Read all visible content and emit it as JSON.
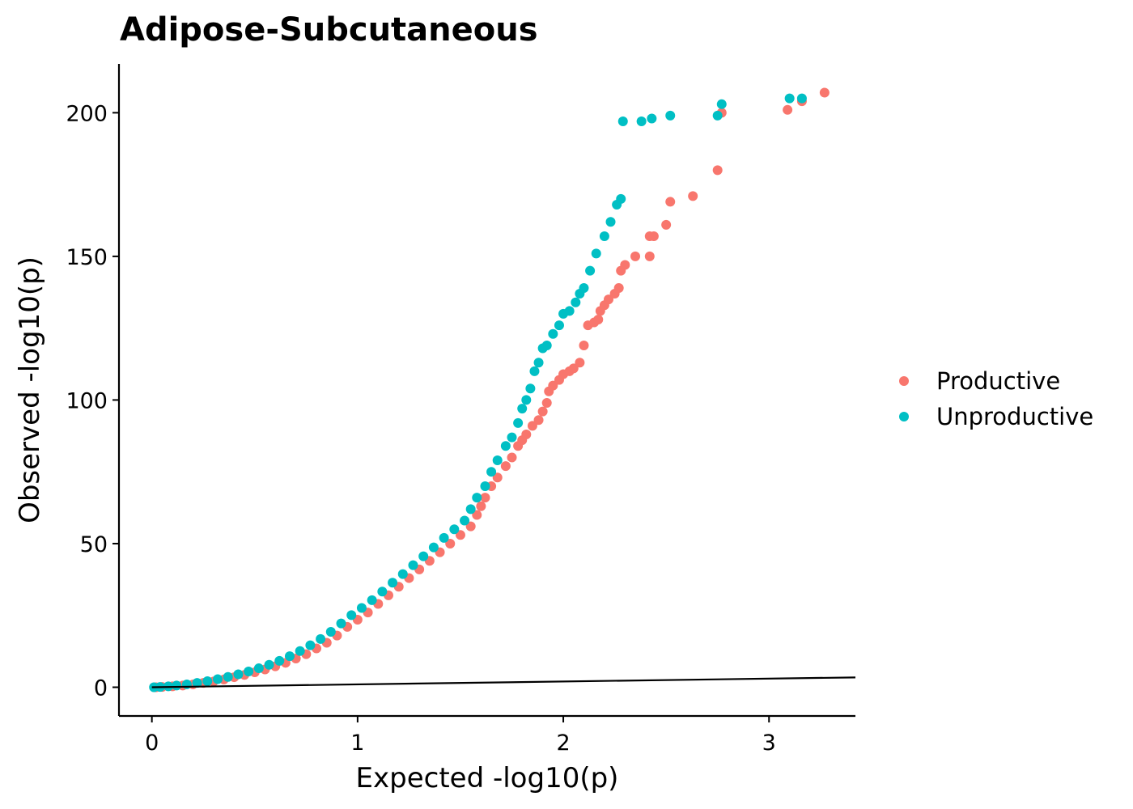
{
  "chart_data": {
    "type": "scatter",
    "title": "Adipose-Subcutaneous",
    "xlabel": "Expected -log10(p)",
    "ylabel": "Observed -log10(p)",
    "xlim": [
      -0.16,
      3.42
    ],
    "ylim": [
      -10,
      217
    ],
    "x_ticks": [
      0,
      1,
      2,
      3
    ],
    "y_ticks": [
      0,
      50,
      100,
      150,
      200
    ],
    "x_tick_labels": [
      "0",
      "1",
      "2",
      "3"
    ],
    "y_tick_labels": [
      "0",
      "50",
      "100",
      "150",
      "200"
    ],
    "grid": false,
    "legend_position": "right",
    "reference_line": {
      "slope": 1,
      "intercept": 0
    },
    "series": [
      {
        "name": "Productive",
        "color": "#F8766D",
        "points": [
          [
            0.02,
            0
          ],
          [
            0.05,
            0.1
          ],
          [
            0.1,
            0.3
          ],
          [
            0.15,
            0.6
          ],
          [
            0.2,
            1.0
          ],
          [
            0.25,
            1.5
          ],
          [
            0.3,
            2.0
          ],
          [
            0.35,
            2.7
          ],
          [
            0.4,
            3.5
          ],
          [
            0.45,
            4.3
          ],
          [
            0.5,
            5.2
          ],
          [
            0.55,
            6.2
          ],
          [
            0.6,
            7.3
          ],
          [
            0.65,
            8.5
          ],
          [
            0.7,
            10
          ],
          [
            0.75,
            11.5
          ],
          [
            0.8,
            13.5
          ],
          [
            0.85,
            15.5
          ],
          [
            0.9,
            18
          ],
          [
            0.95,
            21
          ],
          [
            1.0,
            23.5
          ],
          [
            1.05,
            26
          ],
          [
            1.1,
            29
          ],
          [
            1.15,
            32
          ],
          [
            1.2,
            35
          ],
          [
            1.25,
            38
          ],
          [
            1.3,
            41
          ],
          [
            1.35,
            44
          ],
          [
            1.4,
            47
          ],
          [
            1.45,
            50
          ],
          [
            1.5,
            53
          ],
          [
            1.55,
            56
          ],
          [
            1.58,
            60
          ],
          [
            1.6,
            63
          ],
          [
            1.62,
            66
          ],
          [
            1.65,
            70
          ],
          [
            1.68,
            73
          ],
          [
            1.72,
            77
          ],
          [
            1.75,
            80
          ],
          [
            1.78,
            84
          ],
          [
            1.8,
            86
          ],
          [
            1.82,
            88
          ],
          [
            1.85,
            91
          ],
          [
            1.88,
            93
          ],
          [
            1.9,
            96
          ],
          [
            1.92,
            99
          ],
          [
            1.93,
            103
          ],
          [
            1.95,
            105
          ],
          [
            1.98,
            107
          ],
          [
            2.0,
            109
          ],
          [
            2.03,
            110
          ],
          [
            2.05,
            111
          ],
          [
            2.08,
            113
          ],
          [
            2.1,
            119
          ],
          [
            2.12,
            126
          ],
          [
            2.15,
            127
          ],
          [
            2.17,
            128
          ],
          [
            2.18,
            131
          ],
          [
            2.2,
            133
          ],
          [
            2.22,
            135
          ],
          [
            2.25,
            137
          ],
          [
            2.27,
            139
          ],
          [
            2.28,
            145
          ],
          [
            2.3,
            147
          ],
          [
            2.35,
            150
          ],
          [
            2.42,
            150
          ],
          [
            2.42,
            157
          ],
          [
            2.44,
            157
          ],
          [
            2.5,
            161
          ],
          [
            2.52,
            169
          ],
          [
            2.63,
            171
          ],
          [
            2.75,
            180
          ],
          [
            2.77,
            200
          ],
          [
            3.09,
            201
          ],
          [
            3.16,
            204
          ],
          [
            3.27,
            207
          ]
        ]
      },
      {
        "name": "Unproductive",
        "color": "#00BFC4",
        "points": [
          [
            0.01,
            0
          ],
          [
            0.04,
            0.1
          ],
          [
            0.08,
            0.3
          ],
          [
            0.12,
            0.6
          ],
          [
            0.17,
            1.0
          ],
          [
            0.22,
            1.5
          ],
          [
            0.27,
            2.1
          ],
          [
            0.32,
            2.8
          ],
          [
            0.37,
            3.6
          ],
          [
            0.42,
            4.5
          ],
          [
            0.47,
            5.5
          ],
          [
            0.52,
            6.6
          ],
          [
            0.57,
            7.8
          ],
          [
            0.62,
            9.2
          ],
          [
            0.67,
            10.8
          ],
          [
            0.72,
            12.6
          ],
          [
            0.77,
            14.6
          ],
          [
            0.82,
            16.8
          ],
          [
            0.87,
            19.3
          ],
          [
            0.92,
            22.2
          ],
          [
            0.97,
            25.1
          ],
          [
            1.02,
            27.6
          ],
          [
            1.07,
            30.3
          ],
          [
            1.12,
            33.3
          ],
          [
            1.17,
            36.4
          ],
          [
            1.22,
            39.4
          ],
          [
            1.27,
            42.5
          ],
          [
            1.32,
            45.6
          ],
          [
            1.37,
            48.7
          ],
          [
            1.42,
            52
          ],
          [
            1.47,
            55
          ],
          [
            1.52,
            58
          ],
          [
            1.55,
            62
          ],
          [
            1.58,
            66
          ],
          [
            1.62,
            70
          ],
          [
            1.65,
            75
          ],
          [
            1.68,
            79
          ],
          [
            1.72,
            84
          ],
          [
            1.75,
            87
          ],
          [
            1.78,
            92
          ],
          [
            1.8,
            97
          ],
          [
            1.82,
            100
          ],
          [
            1.84,
            104
          ],
          [
            1.86,
            110
          ],
          [
            1.88,
            113
          ],
          [
            1.9,
            118
          ],
          [
            1.92,
            119
          ],
          [
            1.95,
            123
          ],
          [
            1.98,
            126
          ],
          [
            2.0,
            130
          ],
          [
            2.03,
            131
          ],
          [
            2.06,
            134
          ],
          [
            2.08,
            137
          ],
          [
            2.1,
            139
          ],
          [
            2.13,
            145
          ],
          [
            2.16,
            151
          ],
          [
            2.2,
            157
          ],
          [
            2.23,
            162
          ],
          [
            2.26,
            168
          ],
          [
            2.28,
            170
          ],
          [
            2.29,
            197
          ],
          [
            2.38,
            197
          ],
          [
            2.43,
            198
          ],
          [
            2.52,
            199
          ],
          [
            2.75,
            199
          ],
          [
            2.77,
            203
          ],
          [
            3.1,
            205
          ],
          [
            3.16,
            205
          ]
        ]
      }
    ]
  }
}
